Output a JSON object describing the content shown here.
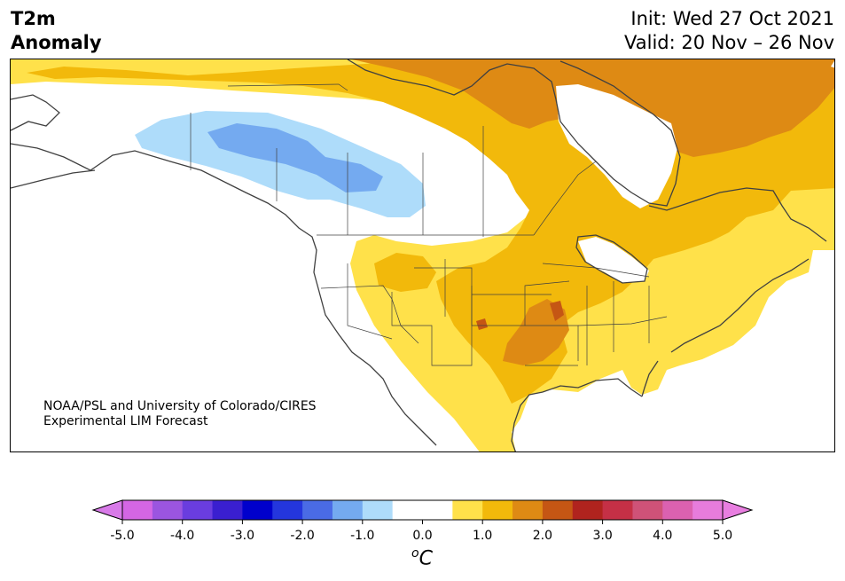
{
  "title": {
    "left_line1": "T2m",
    "left_line2": "Anomaly",
    "init": "Init: Wed 27 Oct 2021",
    "valid": "Valid: 20 Nov – 26 Nov"
  },
  "credit": {
    "line1": "NOAA/PSL and University of Colorado/CIRES",
    "line2": "Experimental LIM Forecast"
  },
  "colorbar": {
    "unit_base": "C",
    "unit_sup": "o",
    "ticks": [
      "-5.0",
      "-4.0",
      "-3.0",
      "-2.0",
      "-1.0",
      "0.0",
      "1.0",
      "2.0",
      "3.0",
      "4.0",
      "5.0"
    ],
    "colors": [
      "#d466e4",
      "#9b55e0",
      "#6a3ddf",
      "#3a1fd0",
      "#0000cc",
      "#2436dd",
      "#4a6be5",
      "#74aaf0",
      "#aedcfa",
      "#ffffff",
      "#ffffff",
      "#ffe14a",
      "#f2b90b",
      "#de8a14",
      "#c55614",
      "#b0231e",
      "#c53046",
      "#cf5278",
      "#db61b0",
      "#e77cdc"
    ],
    "under_color": "#d87ae8",
    "over_color": "#e87ee0"
  },
  "map_legend": {
    "anomaly_colors": {
      "cool_light": "#aedcfa",
      "cool_mid": "#74aaf0",
      "warm_light": "#ffe14a",
      "warm_mid": "#f2b90b",
      "warm_high": "#de8a14",
      "warm_peak": "#c55614"
    }
  }
}
